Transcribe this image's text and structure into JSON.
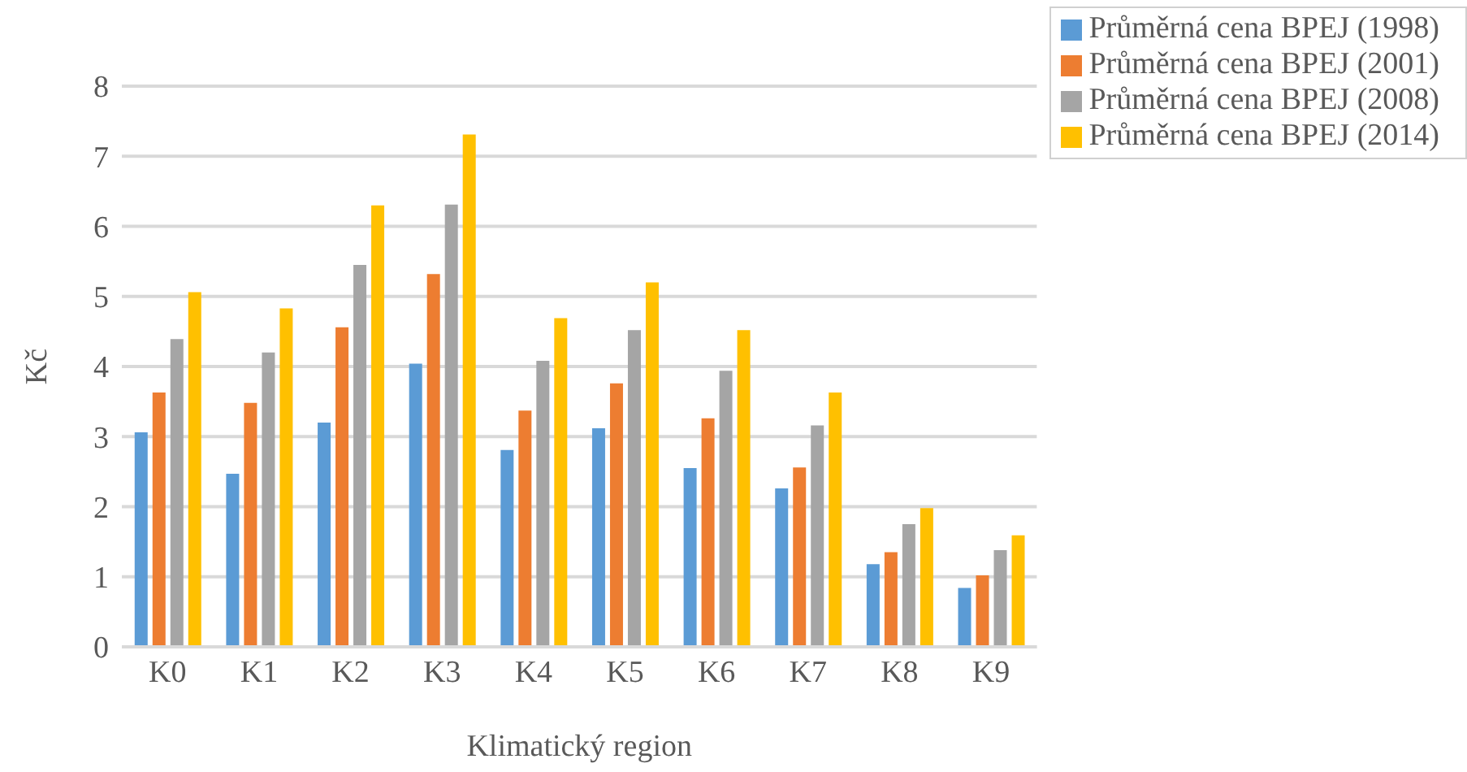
{
  "chart_data": {
    "type": "bar",
    "xlabel": "Klimatický region",
    "ylabel": "Kč",
    "categories": [
      "K0",
      "K1",
      "K2",
      "K3",
      "K4",
      "K5",
      "K6",
      "K7",
      "K8",
      "K9"
    ],
    "series": [
      {
        "name": "Průměrná cena BPEJ (1998)",
        "color": "#5b9bd5",
        "values": [
          3.06,
          2.47,
          3.2,
          4.04,
          2.81,
          3.12,
          2.55,
          2.26,
          1.18,
          0.84
        ]
      },
      {
        "name": "Průměrná cena BPEJ (2001)",
        "color": "#ed7d31",
        "values": [
          3.63,
          3.48,
          4.56,
          5.32,
          3.37,
          3.76,
          3.26,
          2.56,
          1.35,
          1.02
        ]
      },
      {
        "name": "Průměrná cena BPEJ (2008)",
        "color": "#a5a5a5",
        "values": [
          4.39,
          4.2,
          5.45,
          6.31,
          4.08,
          4.52,
          3.94,
          3.16,
          1.75,
          1.38
        ]
      },
      {
        "name": "Průměrná cena BPEJ (2014)",
        "color": "#ffc000",
        "values": [
          5.06,
          4.83,
          6.3,
          7.31,
          4.69,
          5.2,
          4.52,
          3.63,
          1.98,
          1.59
        ]
      }
    ],
    "ylim": [
      0,
      8
    ],
    "yticks": [
      0,
      1,
      2,
      3,
      4,
      5,
      6,
      7,
      8
    ],
    "grid": "y",
    "legend": "top right"
  }
}
